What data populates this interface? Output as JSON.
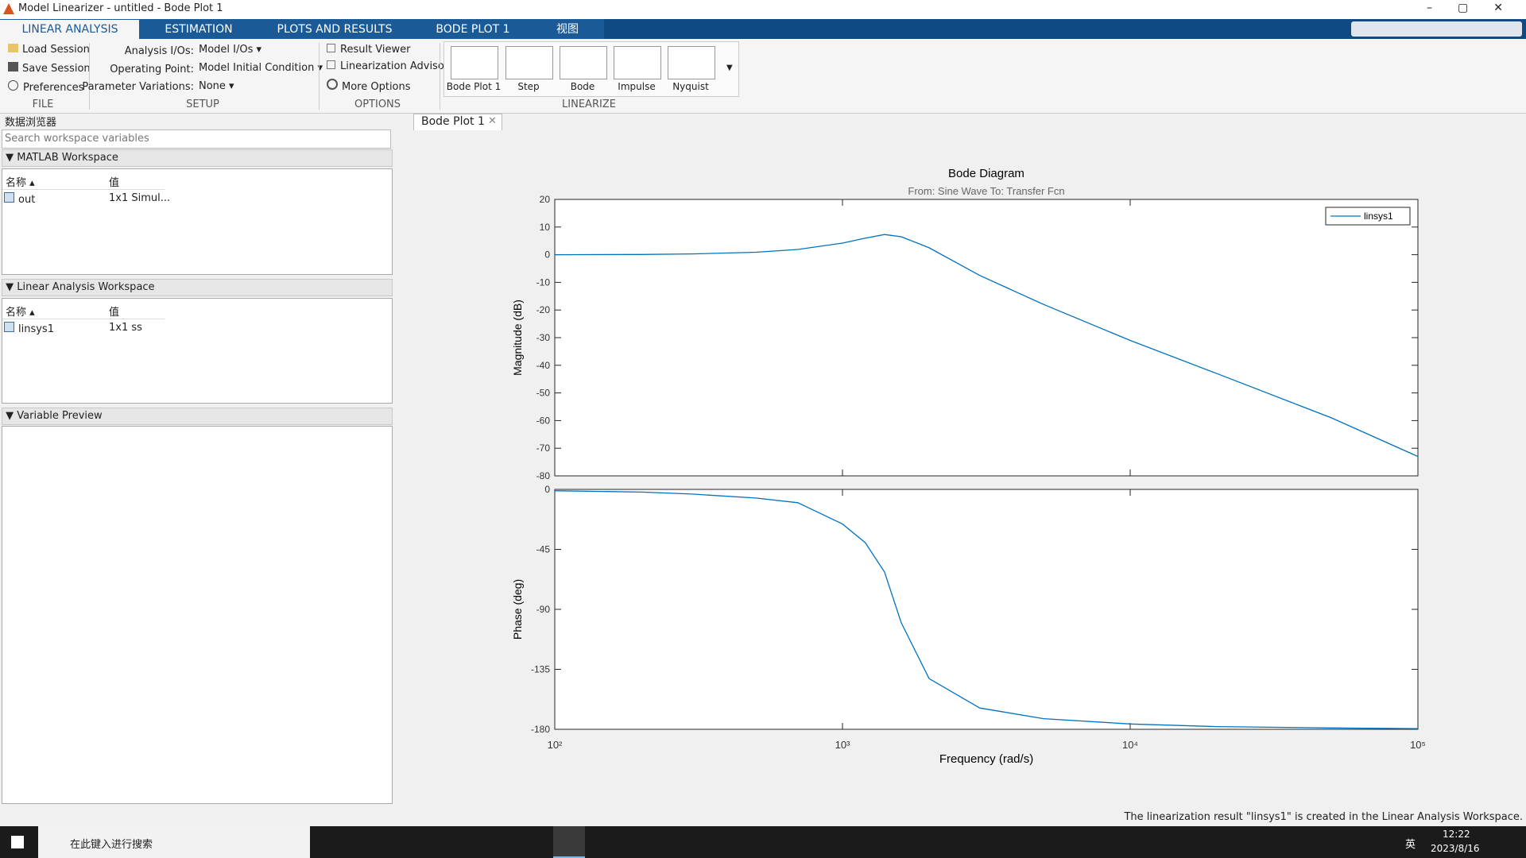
{
  "window": {
    "title": "Model Linearizer - untitled - Bode Plot 1"
  },
  "tabs": [
    "LINEAR ANALYSIS",
    "ESTIMATION",
    "PLOTS AND RESULTS",
    "BODE PLOT 1",
    "视图"
  ],
  "ribbon": {
    "file": {
      "label": "FILE",
      "buttons": [
        "Load Session",
        "Save Session",
        "Preferences"
      ]
    },
    "setup": {
      "label": "SETUP",
      "rows": [
        {
          "label": "Analysis I/Os:",
          "value": "Model I/Os"
        },
        {
          "label": "Operating Point:",
          "value": "Model Initial Condition"
        },
        {
          "label": "Parameter Variations:",
          "value": "None"
        }
      ]
    },
    "options": {
      "label": "OPTIONS",
      "items": [
        "Result Viewer",
        "Linearization Advisor",
        "More Options"
      ]
    },
    "linearize": {
      "label": "LINEARIZE",
      "buttons": [
        "Bode Plot 1",
        "Step",
        "Bode",
        "Impulse",
        "Nyquist"
      ]
    }
  },
  "browser": {
    "title": "数据浏览器",
    "search": "Search workspace variables",
    "sections": [
      {
        "title": "MATLAB Workspace",
        "columns": [
          "名称",
          "值"
        ],
        "rows": [
          [
            "out",
            "1x1 Simul..."
          ]
        ]
      },
      {
        "title": "Linear Analysis Workspace",
        "columns": [
          "名称",
          "值"
        ],
        "rows": [
          [
            "linsys1",
            "1x1 ss"
          ]
        ]
      },
      {
        "title": "Variable Preview"
      }
    ]
  },
  "document_tab": "Bode Plot 1",
  "chart_data": [
    {
      "type": "line",
      "title": "Bode Diagram",
      "subtitle": "From: Sine Wave  To: Transfer Fcn",
      "ylabel": "Magnitude (dB)",
      "xscale": "log",
      "xlim": [
        100,
        100000
      ],
      "x": [
        100,
        200,
        300,
        500,
        700,
        1000,
        1200,
        1400,
        1600,
        2000,
        3000,
        5000,
        10000,
        20000,
        50000,
        100000
      ],
      "series": [
        {
          "name": "linsys1",
          "color": "#0072bd",
          "values": [
            0,
            0.1,
            0.3,
            0.9,
            1.9,
            4.2,
            6.0,
            7.3,
            6.5,
            2.5,
            -7.5,
            -18,
            -31,
            -43,
            -59,
            -73
          ]
        }
      ],
      "ylim": [
        -80,
        20
      ],
      "yticks": [
        -80,
        -70,
        -60,
        -50,
        -40,
        -30,
        -20,
        -10,
        0,
        10,
        20
      ],
      "legend": "upper right"
    },
    {
      "type": "line",
      "ylabel": "Phase (deg)",
      "xlabel": "Frequency  (rad/s)",
      "xscale": "log",
      "xlim": [
        100,
        100000
      ],
      "xticks": [
        {
          "value": 100,
          "label": "10²"
        },
        {
          "value": 1000,
          "label": "10³"
        },
        {
          "value": 10000,
          "label": "10⁴"
        },
        {
          "value": 100000,
          "label": "10⁵"
        }
      ],
      "x": [
        100,
        200,
        300,
        500,
        700,
        1000,
        1200,
        1400,
        1600,
        2000,
        3000,
        5000,
        10000,
        20000,
        50000,
        100000
      ],
      "series": [
        {
          "color": "#0072bd",
          "values": [
            -1,
            -2,
            -3.5,
            -6.5,
            -10,
            -26,
            -40,
            -62,
            -100,
            -142,
            -164,
            -172,
            -176,
            -178,
            -179,
            -179.5
          ]
        }
      ],
      "ylim": [
        -180,
        0
      ],
      "yticks": [
        -180,
        -135,
        -90,
        -45,
        0
      ]
    }
  ],
  "status": "The linearization result \"linsys1\" is created in the Linear Analysis Workspace.",
  "taskbar": {
    "search": "在此键入进行搜索",
    "ime": "英",
    "time": "12:22",
    "date": "2023/8/16"
  }
}
